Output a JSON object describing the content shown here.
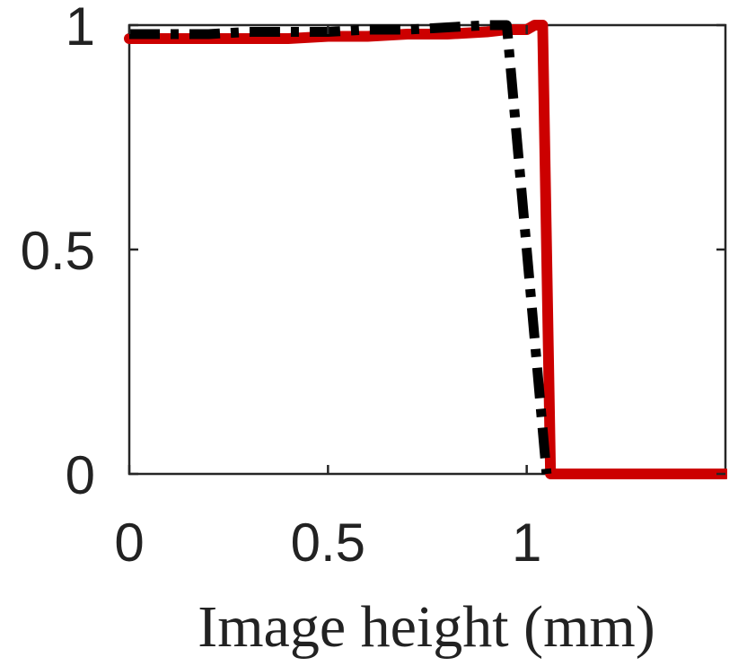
{
  "chart_data": {
    "type": "line",
    "title": "",
    "xlabel": "Image height (mm)",
    "ylabel": "",
    "xlim": [
      0,
      1.5
    ],
    "ylim": [
      0,
      1
    ],
    "xticks": [
      0,
      0.5,
      1
    ],
    "xtick_labels": [
      "0",
      "0.5",
      "1"
    ],
    "yticks": [
      0,
      0.5,
      1
    ],
    "ytick_labels": [
      "0",
      "0.5",
      "1"
    ],
    "grid": false,
    "legend": "none",
    "series": [
      {
        "color": "#cc0000",
        "style": "solid",
        "x": [
          0,
          0.1,
          0.2,
          0.3,
          0.4,
          0.5,
          0.6,
          0.7,
          0.8,
          0.9,
          0.95,
          1.0,
          1.02,
          1.04,
          1.06,
          1.2,
          1.35,
          1.5
        ],
        "y": [
          0.97,
          0.97,
          0.97,
          0.97,
          0.97,
          0.975,
          0.975,
          0.98,
          0.98,
          0.985,
          0.99,
          0.99,
          1.0,
          1.0,
          0.0,
          0.0,
          0.0,
          0.0
        ]
      },
      {
        "color": "#000000",
        "style": "dashdot",
        "x": [
          0,
          0.1,
          0.2,
          0.3,
          0.4,
          0.5,
          0.6,
          0.7,
          0.8,
          0.9,
          0.95,
          1.05
        ],
        "y": [
          0.98,
          0.98,
          0.98,
          0.985,
          0.985,
          0.985,
          0.99,
          0.99,
          0.995,
          1.0,
          1.0,
          0.0
        ]
      }
    ]
  }
}
